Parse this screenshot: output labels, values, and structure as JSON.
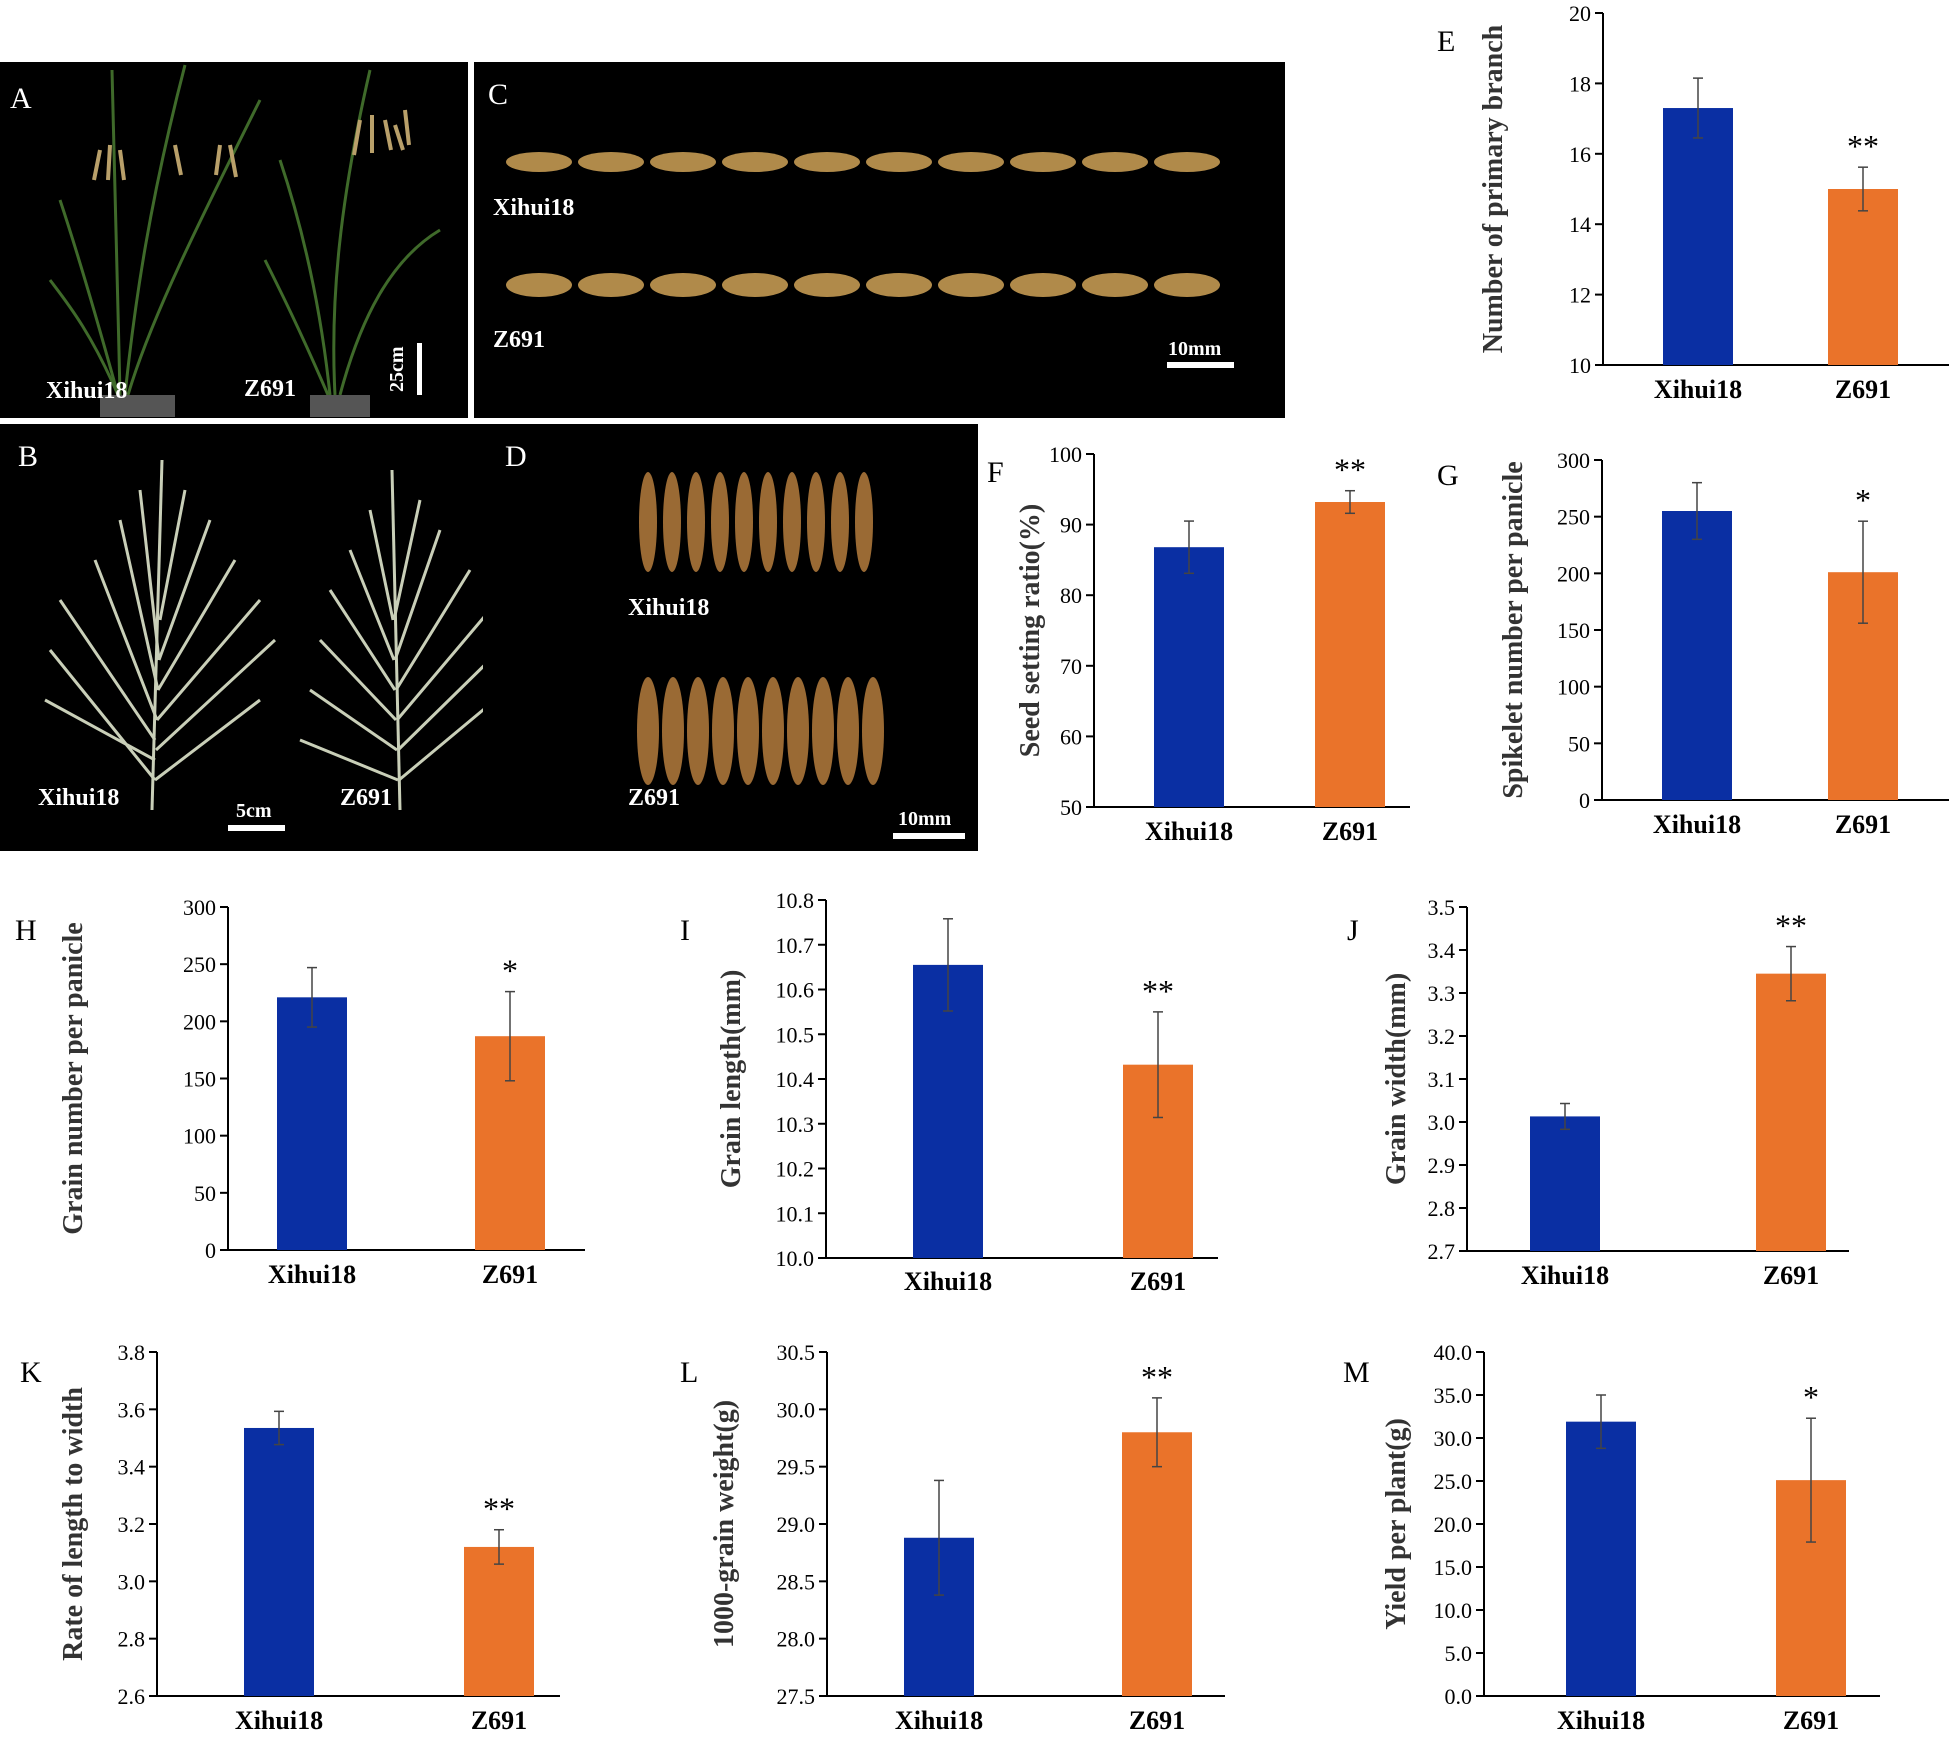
{
  "colors": {
    "xihui18": "#0a2fa3",
    "z691": "#ea732a",
    "axis": "#000000",
    "photo_bg": "#000000"
  },
  "photos": [
    {
      "letter": "A",
      "labels": [
        "Xihui18",
        "Z691"
      ],
      "scale": "25cm",
      "content": "whole rice plants in pots"
    },
    {
      "letter": "B",
      "labels": [
        "Xihui18",
        "Z691"
      ],
      "scale": "5cm",
      "content": "panicles"
    },
    {
      "letter": "C",
      "labels": [
        "Xihui18",
        "Z691"
      ],
      "scale": "10mm",
      "content": "grains in a row (length)"
    },
    {
      "letter": "D",
      "labels": [
        "Xihui18",
        "Z691"
      ],
      "scale": "10mm",
      "content": "grains side by side (width)"
    }
  ],
  "chart_data": [
    {
      "panel": "E",
      "type": "bar",
      "categories": [
        "Xihui18",
        "Z691"
      ],
      "values": [
        17.3,
        15.0
      ],
      "errors": [
        0.85,
        0.62
      ],
      "significance": [
        "",
        "**"
      ],
      "ylabel": "Number of primary branch",
      "ylim": [
        10,
        20
      ],
      "ticks": [
        10,
        12,
        14,
        16,
        18,
        20
      ]
    },
    {
      "panel": "F",
      "type": "bar",
      "categories": [
        "Xihui18",
        "Z691"
      ],
      "values": [
        86.8,
        93.2
      ],
      "errors": [
        3.7,
        1.6
      ],
      "significance": [
        "",
        "**"
      ],
      "ylabel": "Seed setting ratio(%)",
      "ylim": [
        50,
        100
      ],
      "ticks": [
        50,
        60,
        70,
        80,
        90,
        100
      ]
    },
    {
      "panel": "G",
      "type": "bar",
      "categories": [
        "Xihui18",
        "Z691"
      ],
      "values": [
        255,
        201
      ],
      "errors": [
        25,
        45
      ],
      "significance": [
        "",
        "*"
      ],
      "ylabel": "Spikelet number per panicle",
      "ylim": [
        0,
        300
      ],
      "ticks": [
        0,
        50,
        100,
        150,
        200,
        250,
        300
      ]
    },
    {
      "panel": "H",
      "type": "bar",
      "categories": [
        "Xihui18",
        "Z691"
      ],
      "values": [
        221,
        187
      ],
      "errors": [
        26,
        39
      ],
      "significance": [
        "",
        "*"
      ],
      "ylabel": "Grain number per panicle",
      "ylim": [
        0,
        300
      ],
      "ticks": [
        0,
        50,
        100,
        150,
        200,
        250,
        300
      ]
    },
    {
      "panel": "I",
      "type": "bar",
      "categories": [
        "Xihui18",
        "Z691"
      ],
      "values": [
        10.655,
        10.432
      ],
      "errors": [
        0.103,
        0.118
      ],
      "significance": [
        "",
        "**"
      ],
      "ylabel": "Grain length(mm)",
      "ylim": [
        10.0,
        10.8
      ],
      "ticks": [
        "10.0",
        "10.1",
        "10.2",
        "10.3",
        "10.4",
        "10.5",
        "10.6",
        "10.7",
        "10.8"
      ]
    },
    {
      "panel": "J",
      "type": "bar",
      "categories": [
        "Xihui18",
        "Z691"
      ],
      "values": [
        3.013,
        3.345
      ],
      "errors": [
        0.03,
        0.063
      ],
      "significance": [
        "",
        "**"
      ],
      "ylabel": "Grain width(mm)",
      "ylim": [
        2.7,
        3.5
      ],
      "ticks": [
        "2.7",
        "2.8",
        "2.9",
        "3.0",
        "3.1",
        "3.2",
        "3.3",
        "3.4",
        "3.5"
      ]
    },
    {
      "panel": "K",
      "type": "bar",
      "categories": [
        "Xihui18",
        "Z691"
      ],
      "values": [
        3.535,
        3.12
      ],
      "errors": [
        0.058,
        0.06
      ],
      "significance": [
        "",
        "**"
      ],
      "ylabel": "Rate of length to width",
      "ylim": [
        2.6,
        3.8
      ],
      "ticks": [
        "2.6",
        "2.8",
        "3.0",
        "3.2",
        "3.4",
        "3.6",
        "3.8"
      ]
    },
    {
      "panel": "L",
      "type": "bar",
      "categories": [
        "Xihui18",
        "Z691"
      ],
      "values": [
        28.88,
        29.8
      ],
      "errors": [
        0.5,
        0.3
      ],
      "significance": [
        "",
        "**"
      ],
      "ylabel": "1000-grain weight(g)",
      "ylim": [
        27.5,
        30.5
      ],
      "ticks": [
        "27.5",
        "28.0",
        "28.5",
        "29.0",
        "29.5",
        "30.0",
        "30.5"
      ]
    },
    {
      "panel": "M",
      "type": "bar",
      "categories": [
        "Xihui18",
        "Z691"
      ],
      "values": [
        31.9,
        25.1
      ],
      "errors": [
        3.1,
        7.2
      ],
      "significance": [
        "",
        "*"
      ],
      "ylabel": "Yield per plant(g)",
      "ylim": [
        0,
        40
      ],
      "ticks": [
        "0.0",
        "5.0",
        "10.0",
        "15.0",
        "20.0",
        "25.0",
        "30.0",
        "35.0",
        "40.0"
      ]
    }
  ]
}
